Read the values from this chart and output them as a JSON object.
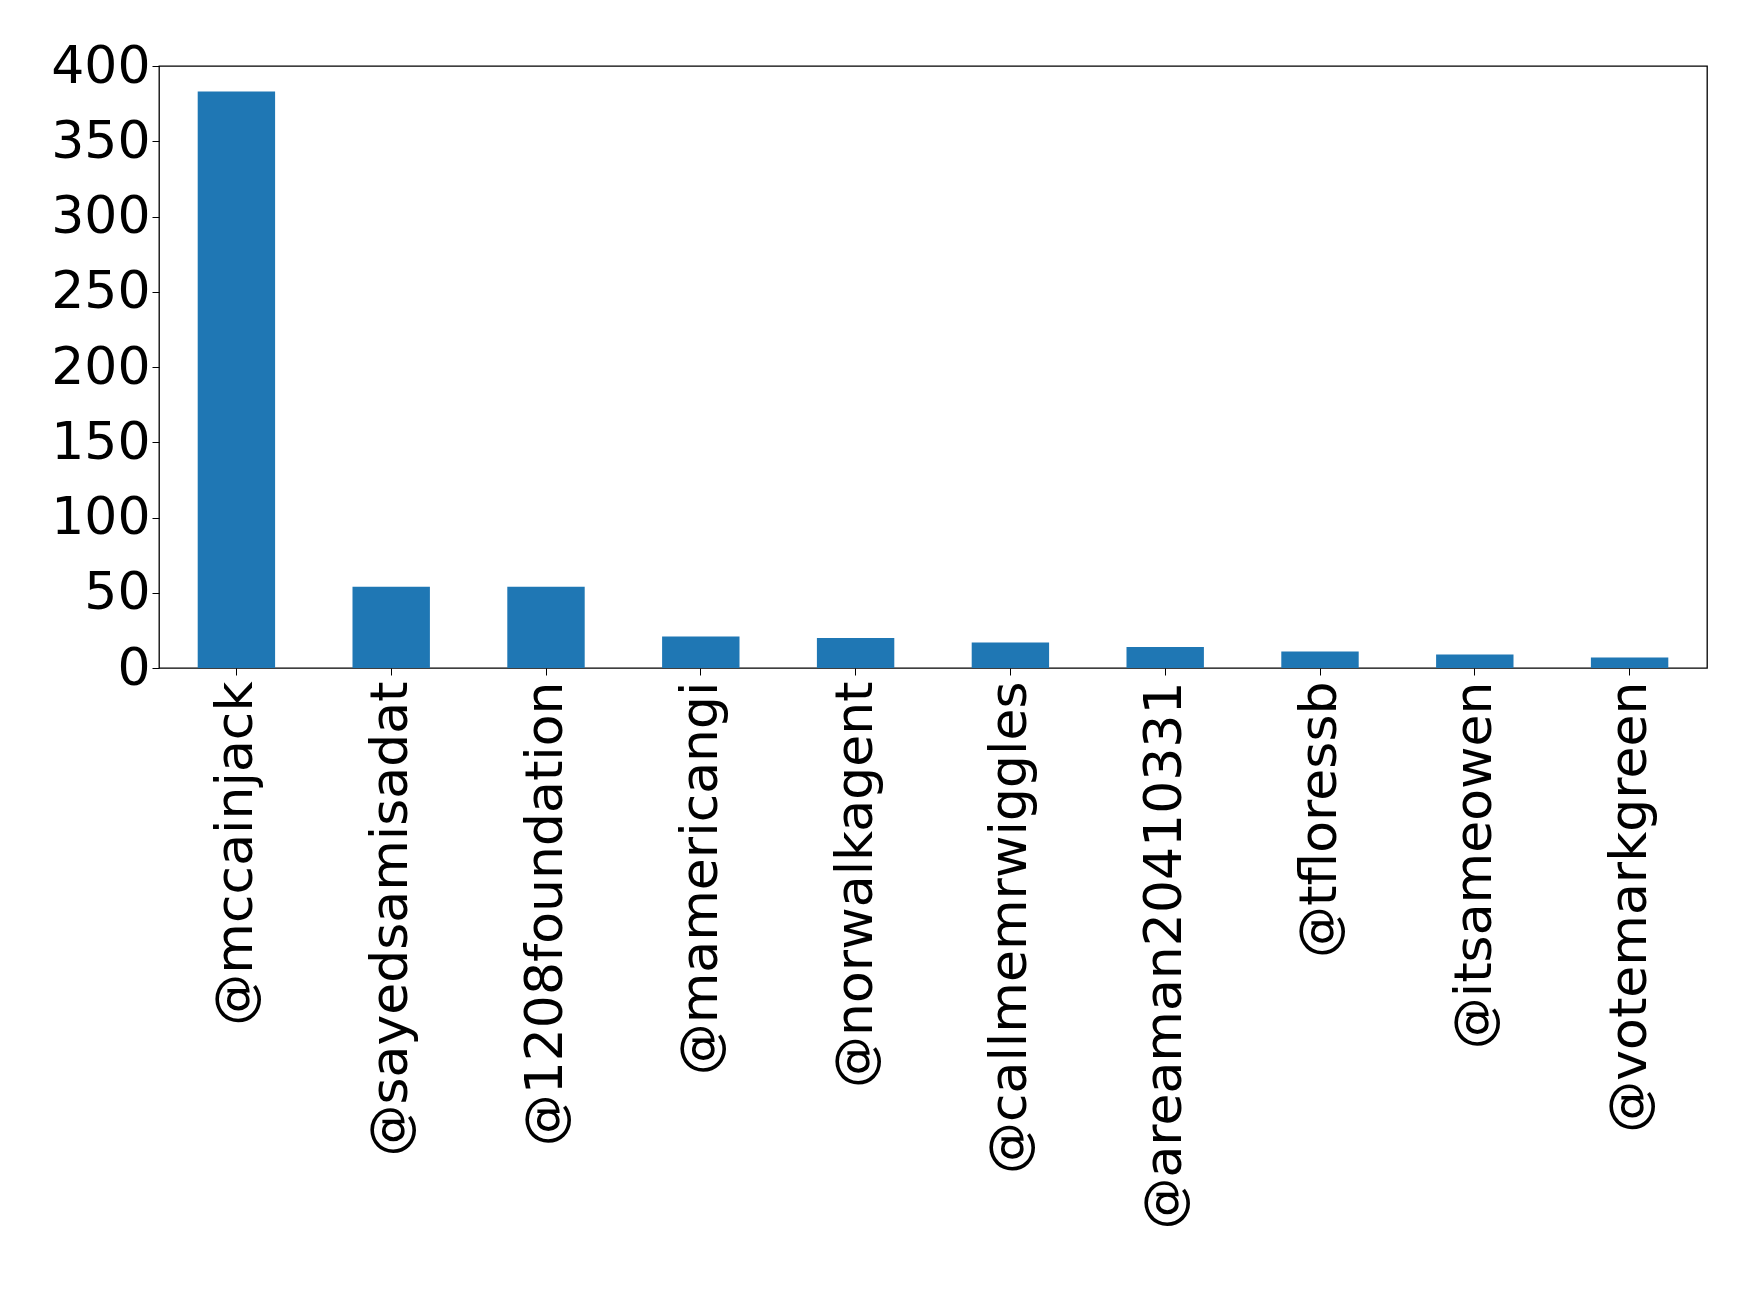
{
  "chart_data": {
    "type": "bar",
    "categories": [
      "@mccainjack",
      "@sayedsamisadat",
      "@1208foundation",
      "@mamericangi",
      "@norwalkagent",
      "@callmemrwiggles",
      "@areaman20410331",
      "@tfloressb",
      "@itsameowen",
      "@votemarkgreen"
    ],
    "values": [
      383,
      54,
      54,
      21,
      20,
      17,
      14,
      11,
      9,
      7
    ],
    "color": "#1f77b4",
    "ylim": [
      0,
      400
    ],
    "yticks": [
      0,
      50,
      100,
      150,
      200,
      250,
      300,
      350,
      400
    ],
    "grid": false
  }
}
